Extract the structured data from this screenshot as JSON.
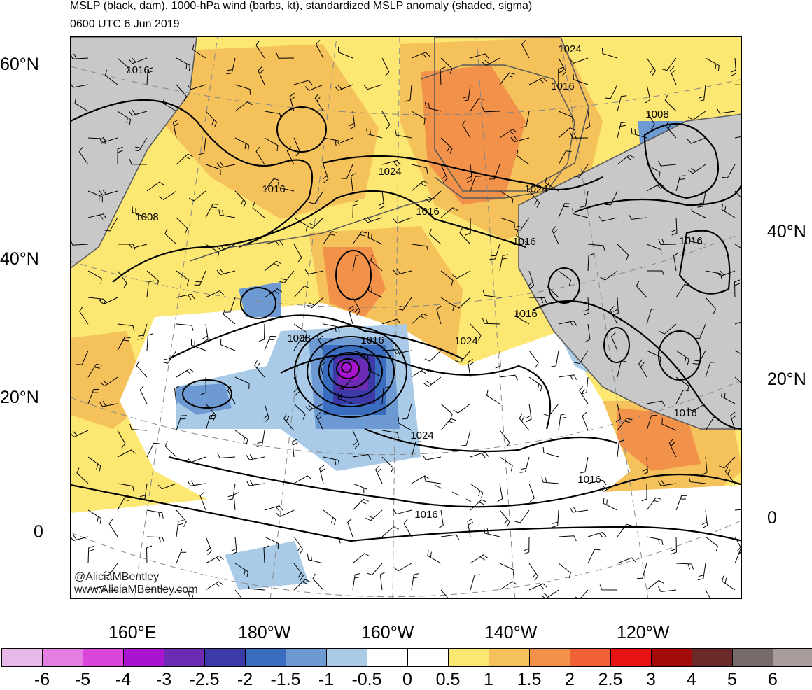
{
  "header": {
    "title": "MSLP (black, dam), 1000-hPa wind (barbs, kt), standardized MSLP anomaly (shaded, sigma)",
    "subtitle": "0600 UTC 6 Jun 2019"
  },
  "map": {
    "lat_labels_left": [
      "60°N",
      "40°N",
      "20°N",
      "0"
    ],
    "lat_labels_right": [
      "40°N",
      "20°N",
      "0"
    ],
    "lon_labels": [
      "160°E",
      "180°W",
      "160°W",
      "140°W",
      "120°W"
    ],
    "isobar_labels": [
      "1016",
      "1024",
      "1016",
      "1008",
      "1016",
      "1024",
      "1016",
      "1024",
      "1016",
      "1008",
      "1016",
      "1016",
      "1024",
      "1008",
      "1016",
      "1024",
      "1016",
      "1016",
      "1016"
    ],
    "features": {
      "low_center_sigma": -3,
      "colors": {
        "land": "#c8c8c8",
        "coast": "#5a5a5a",
        "isobar": "#000000",
        "graticule": "#888888"
      }
    }
  },
  "credits": [
    "@AliciaMBentley",
    "www.AliciaMBentley.com"
  ],
  "colorbar": {
    "labels": [
      "-6",
      "-5",
      "-4",
      "-3",
      "-2.5",
      "-2",
      "-1.5",
      "-1",
      "-0.5",
      "0",
      "0.5",
      "1",
      "1.5",
      "2",
      "2.5",
      "3",
      "4",
      "5",
      "6"
    ],
    "colors": [
      "#e8b8e8",
      "#e37fe3",
      "#d946d9",
      "#a814cf",
      "#6b2bb5",
      "#3b3aa6",
      "#3a6cc0",
      "#6e9ad3",
      "#a9cbe8",
      "#ffffff",
      "#ffffff",
      "#fbe771",
      "#f5c15b",
      "#f2924a",
      "#f06135",
      "#e81414",
      "#a30a0a",
      "#6b2a2a",
      "#766a6a",
      "#a89c9c"
    ]
  }
}
